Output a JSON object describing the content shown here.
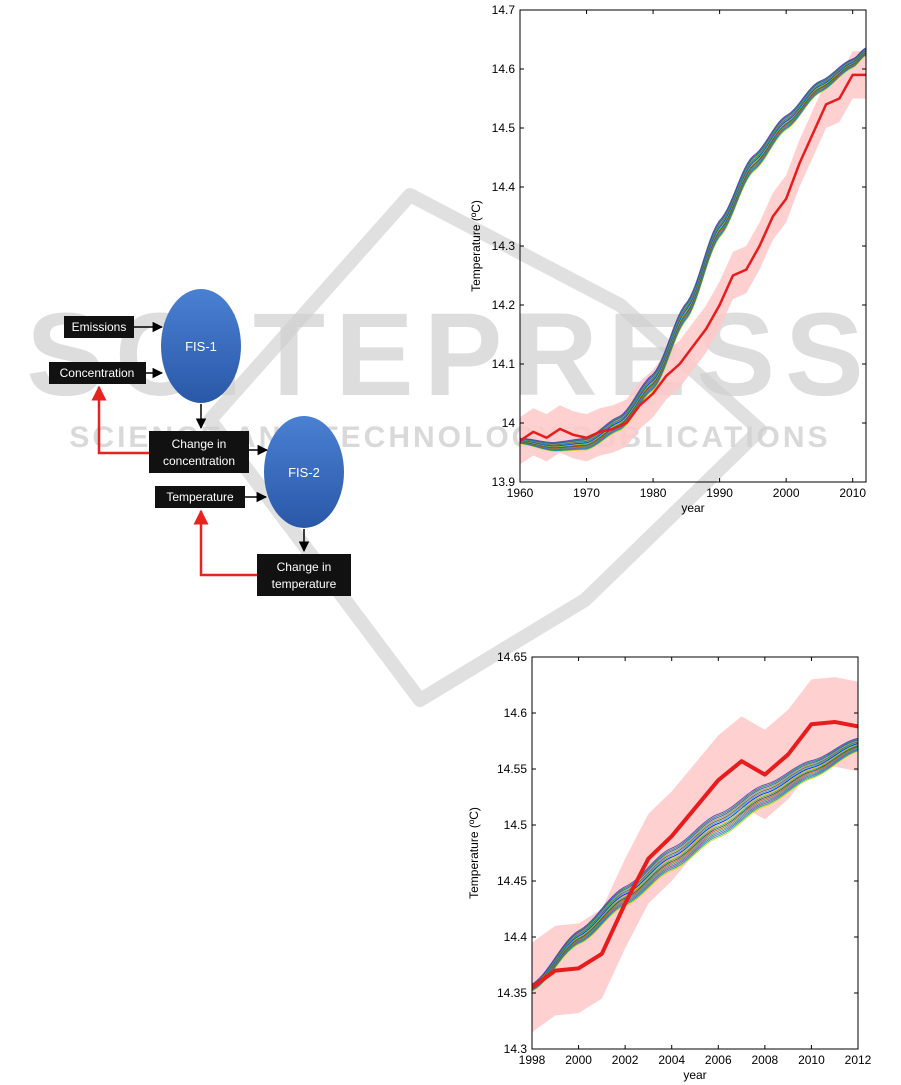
{
  "watermark": {
    "title": "SCITEPRESS",
    "subtitle": "SCIENCE AND TECHNOLOGY PUBLICATIONS",
    "color": "#c8c8c8"
  },
  "diagram": {
    "nodes": {
      "fis1": "FIS-1",
      "fis2": "FIS-2",
      "emissions": "Emissions",
      "concentration": "Concentration",
      "change_concentration": [
        "Change in",
        "concentration"
      ],
      "temperature": "Temperature",
      "change_temperature": [
        "Change in",
        "temperature"
      ]
    },
    "colors": {
      "circle": "#3b6fc4",
      "box": "#111111",
      "feedback": "#e8231f",
      "arrow": "#000000"
    }
  },
  "chart_data": [
    {
      "type": "line",
      "xlabel": "year",
      "ylabel": "Temperature (ºC)",
      "xlim": [
        1960,
        2012
      ],
      "ylim": [
        13.9,
        14.7
      ],
      "xticks": [
        1960,
        1970,
        1980,
        1990,
        2000,
        2010
      ],
      "yticks": [
        13.9,
        14,
        14.1,
        14.2,
        14.3,
        14.4,
        14.5,
        14.6,
        14.7
      ],
      "observed": {
        "color": "#e81c1c",
        "x": [
          1960,
          1962,
          1964,
          1966,
          1968,
          1970,
          1972,
          1974,
          1976,
          1978,
          1980,
          1982,
          1984,
          1986,
          1988,
          1990,
          1992,
          1994,
          1996,
          1998,
          2000,
          2002,
          2004,
          2006,
          2008,
          2010,
          2012
        ],
        "y": [
          13.97,
          13.985,
          13.975,
          13.99,
          13.98,
          13.975,
          13.985,
          13.99,
          14.0,
          14.03,
          14.05,
          14.08,
          14.1,
          14.13,
          14.16,
          14.2,
          14.25,
          14.26,
          14.3,
          14.35,
          14.38,
          14.44,
          14.49,
          14.54,
          14.55,
          14.59,
          14.59
        ]
      },
      "observed_band_halfwidth": 0.04,
      "model_ensemble": {
        "x": [
          1960,
          1965,
          1970,
          1975,
          1980,
          1985,
          1990,
          1995,
          2000,
          2005,
          2010,
          2012
        ],
        "y": [
          13.97,
          13.96,
          13.965,
          14.0,
          14.07,
          14.19,
          14.33,
          14.44,
          14.51,
          14.57,
          14.61,
          14.63
        ]
      }
    },
    {
      "type": "line",
      "xlabel": "year",
      "ylabel": "Temperature (ºC)",
      "xlim": [
        1998,
        2012
      ],
      "ylim": [
        14.3,
        14.65
      ],
      "xticks": [
        1998,
        2000,
        2002,
        2004,
        2006,
        2008,
        2010,
        2012
      ],
      "yticks": [
        14.3,
        14.35,
        14.4,
        14.45,
        14.5,
        14.55,
        14.6,
        14.65
      ],
      "observed": {
        "color": "#e81c1c",
        "x": [
          1998,
          1999,
          2000,
          2001,
          2002,
          2003,
          2004,
          2005,
          2006,
          2007,
          2008,
          2009,
          2010,
          2011,
          2012
        ],
        "y": [
          14.355,
          14.37,
          14.372,
          14.385,
          14.43,
          14.47,
          14.49,
          14.515,
          14.54,
          14.557,
          14.545,
          14.563,
          14.59,
          14.592,
          14.588
        ]
      },
      "observed_band_halfwidth": 0.04,
      "model_ensemble": {
        "x": [
          1998,
          2000,
          2002,
          2004,
          2006,
          2008,
          2010,
          2012
        ],
        "y": [
          14.355,
          14.4,
          14.437,
          14.47,
          14.5,
          14.527,
          14.55,
          14.572
        ]
      }
    }
  ]
}
